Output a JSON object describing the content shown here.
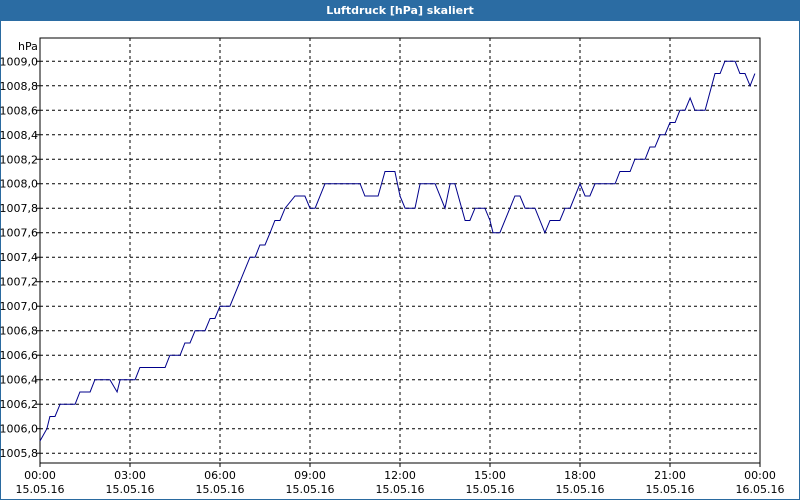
{
  "chart_data": {
    "type": "line",
    "title": "Luftdruck [hPa] skaliert",
    "ylabel": "hPa",
    "xlim": [
      0,
      24
    ],
    "ylim": [
      1005.72,
      1009.19
    ],
    "grid": true,
    "xticks": [
      {
        "value": 0,
        "label": "00:00"
      },
      {
        "value": 3,
        "label": "03:00"
      },
      {
        "value": 6,
        "label": "06:00"
      },
      {
        "value": 9,
        "label": "09:00"
      },
      {
        "value": 12,
        "label": "12:00"
      },
      {
        "value": 15,
        "label": "15:00"
      },
      {
        "value": 18,
        "label": "18:00"
      },
      {
        "value": 21,
        "label": "21:00"
      },
      {
        "value": 24,
        "label": "00:00"
      }
    ],
    "xtick_dates": [
      "15.05.16",
      "15.05.16",
      "15.05.16",
      "15.05.16",
      "15.05.16",
      "15.05.16",
      "15.05.16",
      "15.05.16",
      "16.05.16"
    ],
    "yticks": [
      {
        "value": 1005.8,
        "label": "1005,8"
      },
      {
        "value": 1006.0,
        "label": "1006,0"
      },
      {
        "value": 1006.2,
        "label": "1006,2"
      },
      {
        "value": 1006.4,
        "label": "1006,4"
      },
      {
        "value": 1006.6,
        "label": "1006,6"
      },
      {
        "value": 1006.8,
        "label": "1006,8"
      },
      {
        "value": 1007.0,
        "label": "1007,0"
      },
      {
        "value": 1007.2,
        "label": "1007,2"
      },
      {
        "value": 1007.4,
        "label": "1007,4"
      },
      {
        "value": 1007.6,
        "label": "1007,6"
      },
      {
        "value": 1007.8,
        "label": "1007,8"
      },
      {
        "value": 1008.0,
        "label": "1008,0"
      },
      {
        "value": 1008.2,
        "label": "1008,2"
      },
      {
        "value": 1008.4,
        "label": "1008,4"
      },
      {
        "value": 1008.6,
        "label": "1008,6"
      },
      {
        "value": 1008.8,
        "label": "1008,8"
      },
      {
        "value": 1009.0,
        "label": "1009,0"
      }
    ],
    "x": [
      0,
      0.23,
      0.33,
      0.5,
      0.67,
      1.17,
      1.33,
      1.67,
      1.83,
      2.33,
      2.57,
      2.67,
      3.17,
      3.33,
      4.17,
      4.33,
      4.67,
      4.83,
      5,
      5.17,
      5.5,
      5.67,
      5.83,
      6,
      6.33,
      7,
      7.17,
      7.33,
      7.5,
      7.67,
      7.83,
      8,
      8.17,
      8.5,
      8.83,
      9,
      9.17,
      9.5,
      10.67,
      10.83,
      11.27,
      11.5,
      11.83,
      12,
      12.17,
      12.5,
      12.67,
      13.17,
      13.5,
      13.67,
      13.83,
      14.17,
      14.33,
      14.5,
      14.83,
      15,
      15.1,
      15.33,
      15.83,
      16,
      16.17,
      16.5,
      16.83,
      17,
      17.33,
      17.5,
      17.67,
      18,
      18.17,
      18.33,
      18.5,
      19.17,
      19.33,
      19.67,
      19.83,
      20.17,
      20.33,
      20.5,
      20.67,
      20.83,
      21,
      21.17,
      21.33,
      21.5,
      21.67,
      21.83,
      22.17,
      22.5,
      22.67,
      22.83,
      23.17,
      23.33,
      23.5,
      23.67,
      23.83
    ],
    "series": [
      {
        "name": "Luftdruck",
        "color": "#00008b",
        "values": [
          1005.9,
          1006.0,
          1006.1,
          1006.1,
          1006.2,
          1006.2,
          1006.3,
          1006.3,
          1006.4,
          1006.4,
          1006.3,
          1006.4,
          1006.4,
          1006.5,
          1006.5,
          1006.6,
          1006.6,
          1006.7,
          1006.7,
          1006.8,
          1006.8,
          1006.9,
          1006.9,
          1007.0,
          1007.0,
          1007.4,
          1007.4,
          1007.5,
          1007.5,
          1007.6,
          1007.7,
          1007.7,
          1007.8,
          1007.9,
          1007.9,
          1007.8,
          1007.8,
          1008.0,
          1008.0,
          1007.9,
          1007.9,
          1008.1,
          1008.1,
          1007.9,
          1007.8,
          1007.8,
          1008.0,
          1008.0,
          1007.8,
          1008.0,
          1008.0,
          1007.7,
          1007.7,
          1007.8,
          1007.8,
          1007.7,
          1007.6,
          1007.6,
          1007.9,
          1007.9,
          1007.8,
          1007.8,
          1007.6,
          1007.7,
          1007.7,
          1007.8,
          1007.8,
          1008.0,
          1007.9,
          1007.9,
          1008.0,
          1008.0,
          1008.1,
          1008.1,
          1008.2,
          1008.2,
          1008.3,
          1008.3,
          1008.4,
          1008.4,
          1008.5,
          1008.5,
          1008.6,
          1008.6,
          1008.7,
          1008.6,
          1008.6,
          1008.9,
          1008.9,
          1009.0,
          1009.0,
          1008.9,
          1008.9,
          1008.8,
          1008.9
        ]
      }
    ]
  }
}
